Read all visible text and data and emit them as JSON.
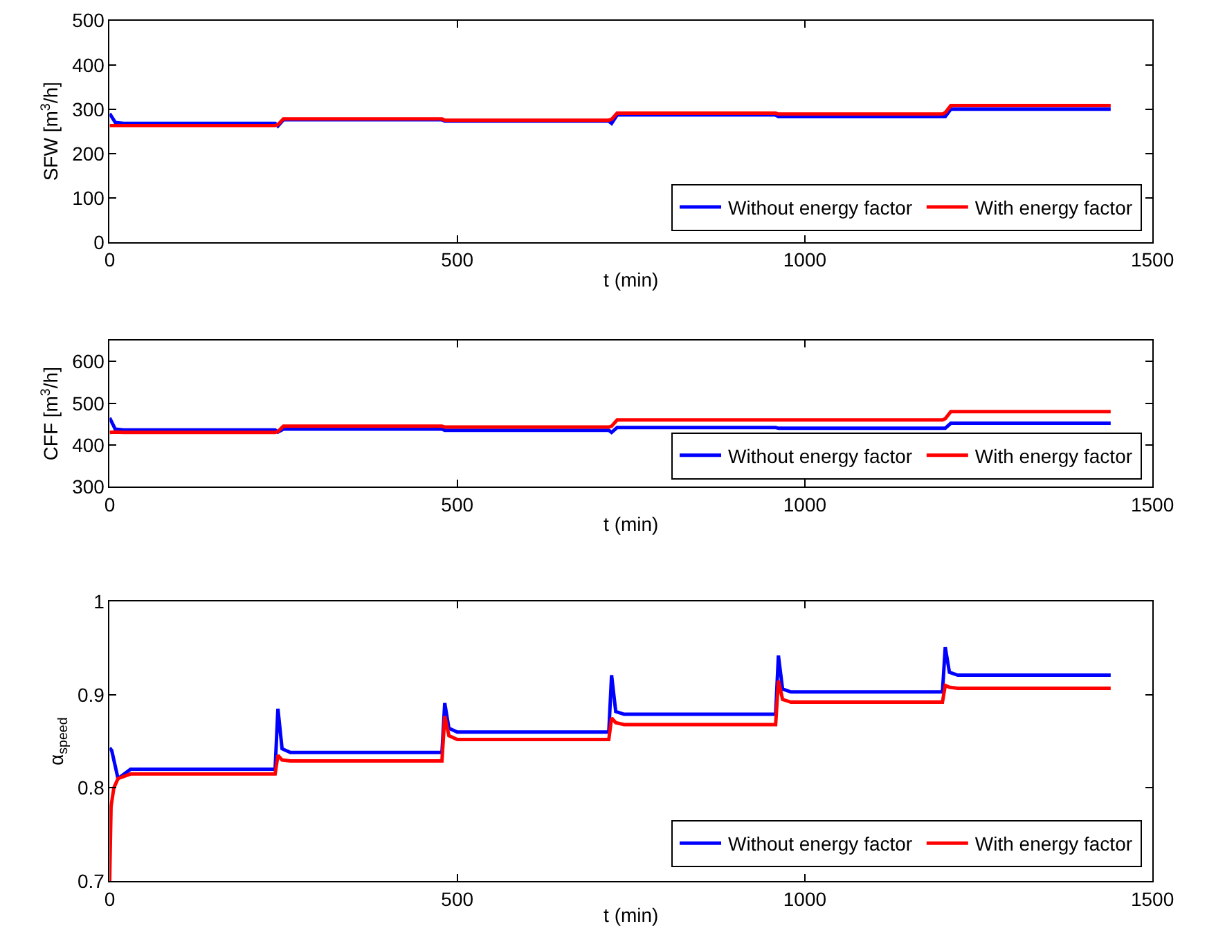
{
  "chart_data": [
    {
      "type": "line",
      "xlabel": "t (min)",
      "ylabel": "SFW [m$^{3}$/h]",
      "xlim": [
        0,
        1500
      ],
      "xticks": [
        0,
        500,
        1000,
        1500
      ],
      "ylim": [
        0,
        500
      ],
      "yticks": [
        0,
        100,
        200,
        300,
        400,
        500
      ],
      "legend": "bottom right",
      "line_style": "solid",
      "series": [
        {
          "name": "Without energy factor",
          "color": "#0000ff",
          "x": [
            0,
            8,
            20,
            238,
            242,
            250,
            478,
            482,
            490,
            718,
            722,
            730,
            958,
            962,
            970,
            1198,
            1202,
            1210,
            1440
          ],
          "values": [
            290,
            270,
            268,
            268,
            262,
            276,
            276,
            273,
            273,
            273,
            268,
            287,
            287,
            283,
            283,
            283,
            283,
            300,
            300
          ]
        },
        {
          "name": "With energy factor",
          "color": "#ff0000",
          "x": [
            0,
            8,
            20,
            238,
            242,
            250,
            478,
            482,
            490,
            718,
            722,
            730,
            958,
            962,
            970,
            1198,
            1202,
            1210,
            1440
          ],
          "values": [
            263,
            263,
            263,
            263,
            265,
            278,
            278,
            275,
            275,
            275,
            277,
            291,
            291,
            289,
            289,
            289,
            292,
            308,
            308
          ]
        }
      ]
    },
    {
      "type": "line",
      "xlabel": "t (min)",
      "ylabel": "CFF [m$^{3}$/h]",
      "xlim": [
        0,
        1500
      ],
      "xticks": [
        0,
        500,
        1000,
        1500
      ],
      "ylim": [
        300,
        650
      ],
      "yticks": [
        300,
        400,
        500,
        600
      ],
      "legend": "bottom right",
      "line_style": "solid",
      "series": [
        {
          "name": "Without energy factor",
          "color": "#0000ff",
          "x": [
            0,
            8,
            20,
            238,
            242,
            250,
            478,
            482,
            490,
            718,
            722,
            730,
            958,
            962,
            970,
            1198,
            1202,
            1210,
            1440
          ],
          "values": [
            465,
            438,
            436,
            436,
            431,
            438,
            438,
            435,
            435,
            435,
            430,
            442,
            442,
            440,
            440,
            440,
            440,
            452,
            452
          ]
        },
        {
          "name": "With energy factor",
          "color": "#ff0000",
          "x": [
            0,
            8,
            20,
            238,
            242,
            250,
            478,
            482,
            490,
            718,
            722,
            730,
            958,
            962,
            970,
            1198,
            1202,
            1210,
            1440
          ],
          "values": [
            430,
            431,
            430,
            430,
            432,
            445,
            445,
            443,
            443,
            443,
            445,
            460,
            460,
            460,
            460,
            460,
            463,
            480,
            480
          ]
        }
      ]
    },
    {
      "type": "line",
      "xlabel": "t (min)",
      "ylabel": "α$_{speed}$",
      "xlim": [
        0,
        1500
      ],
      "xticks": [
        0,
        500,
        1000,
        1500
      ],
      "ylim": [
        0.7,
        1
      ],
      "yticks": [
        0.7,
        0.8,
        0.9,
        1
      ],
      "legend": "bottom right",
      "line_style": "solid",
      "series": [
        {
          "name": "Without energy factor",
          "color": "#0000ff",
          "x": [
            0,
            3,
            12,
            30,
            238,
            242,
            248,
            260,
            478,
            482,
            488,
            500,
            718,
            722,
            728,
            740,
            958,
            962,
            968,
            980,
            1198,
            1202,
            1208,
            1220,
            1440
          ],
          "values": [
            0.843,
            0.84,
            0.81,
            0.82,
            0.82,
            0.885,
            0.842,
            0.838,
            0.838,
            0.891,
            0.864,
            0.86,
            0.86,
            0.921,
            0.882,
            0.879,
            0.879,
            0.942,
            0.906,
            0.903,
            0.903,
            0.951,
            0.924,
            0.921,
            0.921
          ]
        },
        {
          "name": "With energy factor",
          "color": "#ff0000",
          "x": [
            0,
            2,
            6,
            12,
            30,
            238,
            242,
            248,
            260,
            478,
            482,
            488,
            500,
            718,
            722,
            728,
            740,
            958,
            962,
            968,
            980,
            1198,
            1202,
            1208,
            1220,
            1440
          ],
          "values": [
            0.7,
            0.78,
            0.8,
            0.81,
            0.815,
            0.815,
            0.835,
            0.83,
            0.829,
            0.829,
            0.877,
            0.856,
            0.852,
            0.852,
            0.875,
            0.87,
            0.868,
            0.868,
            0.915,
            0.895,
            0.892,
            0.892,
            0.91,
            0.908,
            0.907,
            0.907
          ]
        }
      ]
    }
  ]
}
